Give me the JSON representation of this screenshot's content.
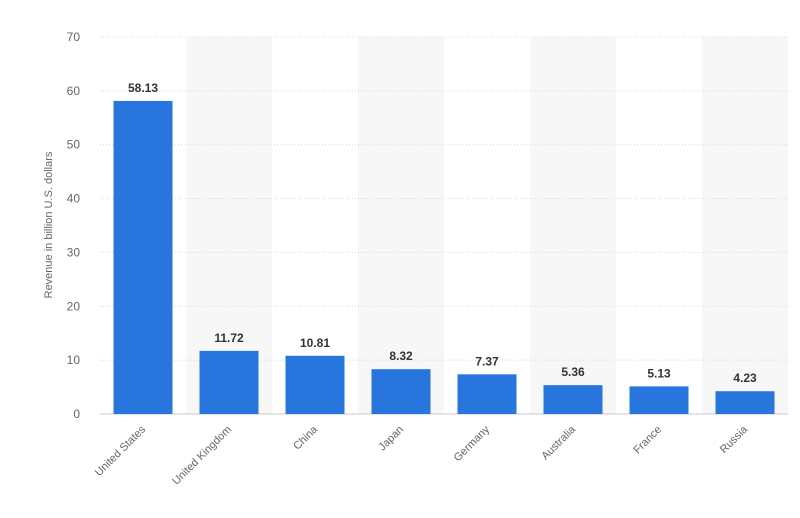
{
  "chart_data": {
    "type": "bar",
    "title": "",
    "xlabel": "",
    "ylabel": "Revenue in billion U.S. dollars",
    "ylim": [
      0,
      70
    ],
    "yticks": [
      0,
      10,
      20,
      30,
      40,
      50,
      60,
      70
    ],
    "grid": true,
    "alternating_column_shading": true,
    "categories": [
      "United States",
      "United Kingdom",
      "China",
      "Japan",
      "Germany",
      "Australia",
      "France",
      "Russia"
    ],
    "values": [
      58.13,
      11.72,
      10.81,
      8.32,
      7.37,
      5.36,
      5.13,
      4.23
    ],
    "data_labels": [
      "58.13",
      "11.72",
      "10.81",
      "8.32",
      "7.37",
      "5.36",
      "5.13",
      "4.23"
    ],
    "colors": {
      "bar": "#2876dd",
      "band": "#f7f7f7",
      "grid": "#d8d8d8",
      "axis_line": "#c8c8c8"
    }
  }
}
